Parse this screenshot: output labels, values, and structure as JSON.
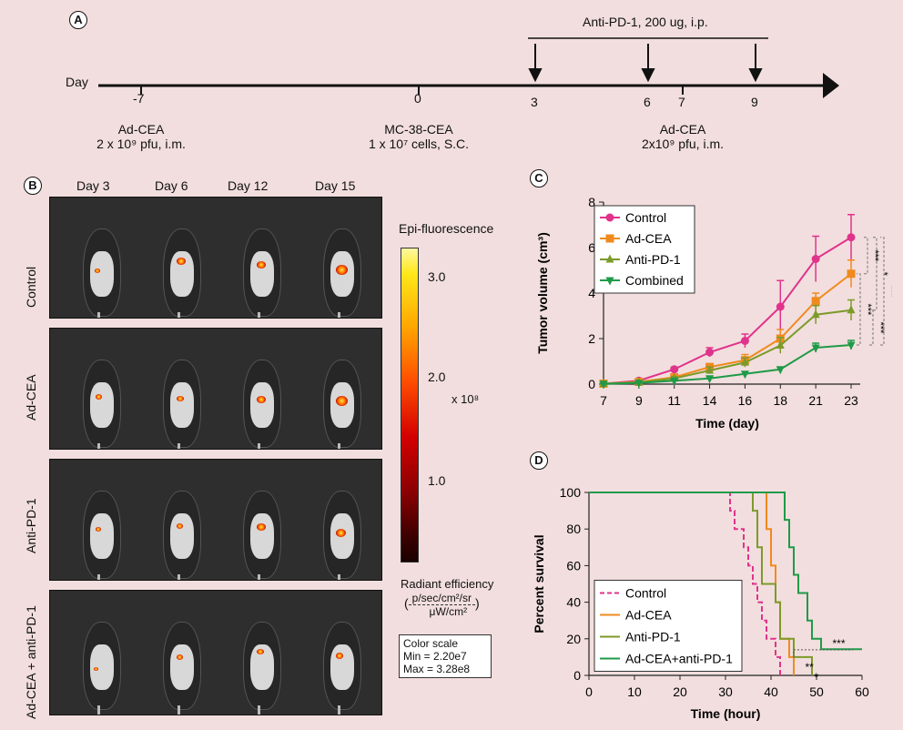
{
  "panels": {
    "a": "A",
    "b": "B",
    "c": "C",
    "d": "D"
  },
  "timeline": {
    "day_label": "Day",
    "treatment_label": "Anti-PD-1, 200 ug, i.p.",
    "ticks": [
      "-7",
      "0",
      "3",
      "6",
      "7",
      "9"
    ],
    "events": [
      {
        "name": "Ad-CEA",
        "dose": "2 x 10⁹ pfu, i.m."
      },
      {
        "name": "MC-38-CEA",
        "dose": "1 x 10⁷ cells, S.C."
      },
      {
        "name": "Ad-CEA",
        "dose": "2x10⁹ pfu, i.m."
      }
    ]
  },
  "imaging": {
    "days": [
      "Day 3",
      "Day 6",
      "Day 12",
      "Day 15"
    ],
    "groups": [
      "Control",
      "Ad-CEA",
      "Anti-PD-1",
      "Ad-CEA + anti-PD-1"
    ],
    "colorbar": {
      "title": "Epi-fluorescence",
      "ticks": [
        "3.0",
        "2.0",
        "1.0"
      ],
      "multiplier": "x 10⁸",
      "unit_title": "Radiant efficiency",
      "unit_num": "p/sec/cm²/sr",
      "unit_den": "μW/cm²",
      "scale_title": "Color scale",
      "scale_min": "Min = 2.20e7",
      "scale_max": "Max = 3.28e8"
    }
  },
  "chart_data": [
    {
      "panel": "C",
      "type": "line",
      "xlabel": "Time (day)",
      "ylabel": "Tumor volume (cm³)",
      "x": [
        7,
        9,
        11,
        14,
        16,
        18,
        21,
        23
      ],
      "xlim": [
        7,
        23
      ],
      "ylim": [
        0,
        8
      ],
      "yticks": [
        0,
        2,
        4,
        6,
        8
      ],
      "series": [
        {
          "name": "Control",
          "color": "#e0338c",
          "marker": "circle",
          "values": [
            0.02,
            0.15,
            0.65,
            1.4,
            1.9,
            3.4,
            5.5,
            6.45
          ],
          "errors": [
            0.02,
            0.05,
            0.1,
            0.2,
            0.3,
            1.15,
            1.0,
            1.0
          ]
        },
        {
          "name": "Ad-CEA",
          "color": "#f08a1e",
          "marker": "square",
          "values": [
            0.02,
            0.1,
            0.3,
            0.75,
            1.05,
            2.0,
            3.65,
            4.85
          ],
          "errors": [
            0.01,
            0.05,
            0.1,
            0.15,
            0.25,
            0.4,
            0.35,
            0.6
          ]
        },
        {
          "name": "Anti-PD-1",
          "color": "#7c9a2a",
          "marker": "triangle-up",
          "values": [
            0.02,
            0.08,
            0.25,
            0.6,
            0.95,
            1.7,
            3.05,
            3.25
          ],
          "errors": [
            0.01,
            0.03,
            0.08,
            0.15,
            0.2,
            0.35,
            0.4,
            0.45
          ]
        },
        {
          "name": "Combined",
          "color": "#1f9a48",
          "marker": "triangle-down",
          "values": [
            0.01,
            0.05,
            0.15,
            0.25,
            0.45,
            0.65,
            1.6,
            1.72
          ],
          "errors": [
            0.01,
            0.02,
            0.05,
            0.08,
            0.1,
            0.1,
            0.2,
            0.2
          ]
        }
      ],
      "significance": [
        "***",
        "***",
        "*",
        "***",
        "***"
      ],
      "legend": "top-left"
    },
    {
      "panel": "D",
      "type": "line",
      "xlabel": "Time (hour)",
      "ylabel": "Percent survival",
      "xlim": [
        0,
        60
      ],
      "ylim": [
        0,
        100
      ],
      "xticks": [
        0,
        10,
        20,
        30,
        40,
        50,
        60
      ],
      "yticks": [
        0,
        20,
        40,
        60,
        80,
        100
      ],
      "series": [
        {
          "name": "Control",
          "color": "#e0338c",
          "dashed": true,
          "steps": [
            [
              0,
              100
            ],
            [
              31,
              100
            ],
            [
              31,
              90
            ],
            [
              32,
              90
            ],
            [
              32,
              80
            ],
            [
              34,
              80
            ],
            [
              34,
              70
            ],
            [
              35,
              70
            ],
            [
              35,
              60
            ],
            [
              36,
              60
            ],
            [
              36,
              50
            ],
            [
              37,
              50
            ],
            [
              37,
              40
            ],
            [
              38,
              40
            ],
            [
              38,
              30
            ],
            [
              39,
              30
            ],
            [
              39,
              20
            ],
            [
              41,
              20
            ],
            [
              41,
              10
            ],
            [
              42,
              10
            ],
            [
              42,
              0
            ]
          ]
        },
        {
          "name": "Ad-CEA",
          "color": "#f08a1e",
          "steps": [
            [
              0,
              100
            ],
            [
              39,
              100
            ],
            [
              39,
              80
            ],
            [
              40,
              80
            ],
            [
              40,
              60
            ],
            [
              41,
              60
            ],
            [
              41,
              40
            ],
            [
              42,
              40
            ],
            [
              42,
              20
            ],
            [
              44,
              20
            ],
            [
              44,
              10
            ],
            [
              45,
              10
            ],
            [
              45,
              0
            ]
          ]
        },
        {
          "name": "Anti-PD-1",
          "color": "#7c9a2a",
          "steps": [
            [
              0,
              100
            ],
            [
              36,
              100
            ],
            [
              36,
              90
            ],
            [
              37,
              90
            ],
            [
              37,
              70
            ],
            [
              38,
              70
            ],
            [
              38,
              50
            ],
            [
              41,
              50
            ],
            [
              41,
              40
            ],
            [
              42,
              40
            ],
            [
              42,
              20
            ],
            [
              45,
              20
            ],
            [
              45,
              10
            ],
            [
              49,
              10
            ],
            [
              49,
              0
            ]
          ]
        },
        {
          "name": "Ad-CEA+anti-PD-1",
          "color": "#1f9a48",
          "steps": [
            [
              0,
              100
            ],
            [
              43,
              100
            ],
            [
              43,
              85
            ],
            [
              44,
              85
            ],
            [
              44,
              70
            ],
            [
              45,
              70
            ],
            [
              45,
              55
            ],
            [
              46,
              55
            ],
            [
              46,
              45
            ],
            [
              48,
              45
            ],
            [
              48,
              30
            ],
            [
              49,
              30
            ],
            [
              49,
              20
            ],
            [
              51,
              20
            ],
            [
              51,
              14.3
            ],
            [
              60,
              14.3
            ]
          ]
        }
      ],
      "significance": [
        "***",
        "**",
        "*"
      ],
      "legend": "bottom-left"
    }
  ]
}
